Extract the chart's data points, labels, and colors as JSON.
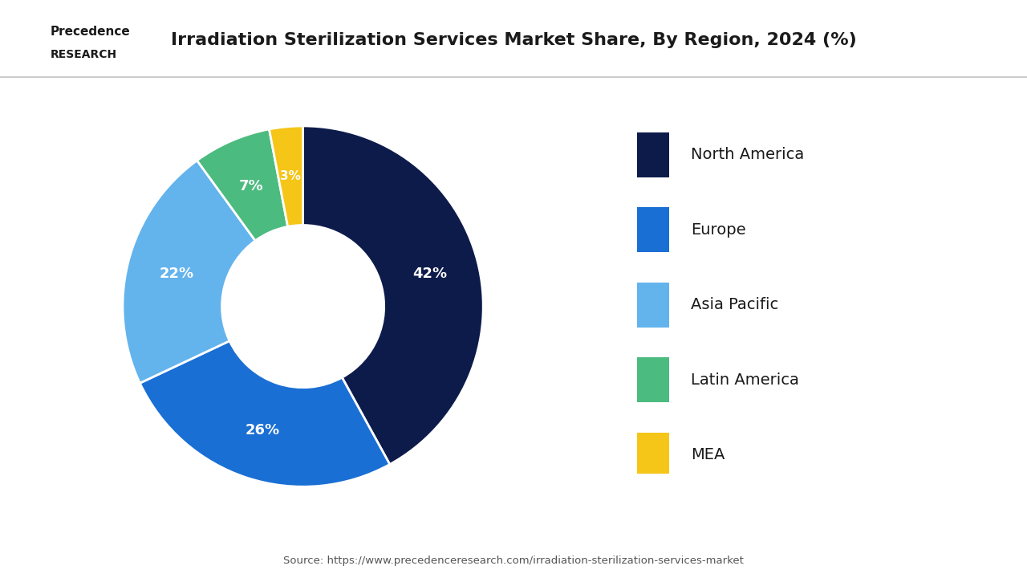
{
  "title": "Irradiation Sterilization Services Market Share, By Region, 2024 (%)",
  "labels": [
    "North America",
    "Europe",
    "Asia Pacific",
    "Latin America",
    "MEA"
  ],
  "values": [
    42,
    26,
    22,
    7,
    3
  ],
  "colors": [
    "#0d1b4b",
    "#1a6fd4",
    "#63b3ed",
    "#4cbb7f",
    "#f5c518"
  ],
  "pct_labels": [
    "42%",
    "26%",
    "22%",
    "7%",
    "3%"
  ],
  "source_text": "Source: https://www.precedenceresearch.com/irradiation-sterilization-services-market",
  "background_color": "#ffffff",
  "legend_labels": [
    "North America",
    "Europe",
    "Asia Pacific",
    "Latin America",
    "MEA"
  ],
  "logo_text_line1": "Precedence",
  "logo_text_line2": "RESEARCH",
  "header_line_color": "#cccccc"
}
